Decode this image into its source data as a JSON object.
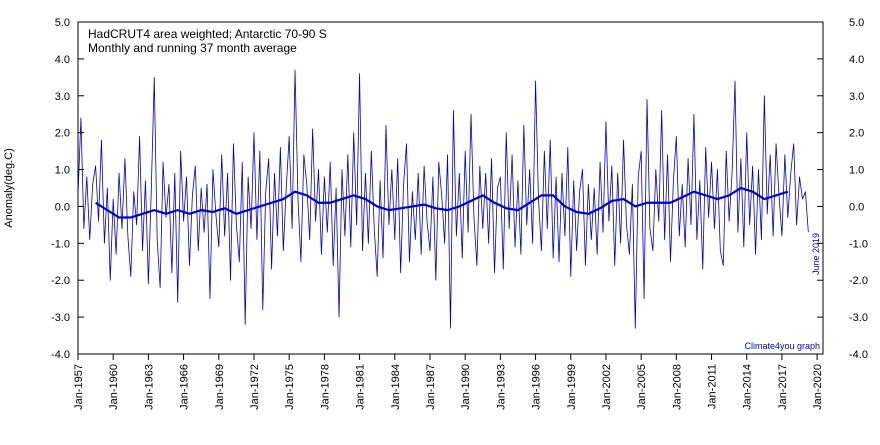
{
  "chart_data": {
    "type": "line",
    "title": "HadCRUT4 area weighted; Antarctic 70-90 S",
    "subtitle": "Monthly and running 37 month average",
    "y_label": "Anomaly(deg.C)",
    "annotations": [
      "June 2019",
      "Climate4you graph"
    ],
    "xlim": [
      1957,
      2020.5
    ],
    "ylim": [
      -4,
      5
    ],
    "xticks": [
      {
        "value": 1957,
        "label": "Jan-1957"
      },
      {
        "value": 1960,
        "label": "Jan-1960"
      },
      {
        "value": 1963,
        "label": "Jan-1963"
      },
      {
        "value": 1966,
        "label": "Jan-1966"
      },
      {
        "value": 1969,
        "label": "Jan-1969"
      },
      {
        "value": 1972,
        "label": "Jan-1972"
      },
      {
        "value": 1975,
        "label": "Jan-1975"
      },
      {
        "value": 1978,
        "label": "Jan-1978"
      },
      {
        "value": 1981,
        "label": "Jan-1981"
      },
      {
        "value": 1984,
        "label": "Jan-1984"
      },
      {
        "value": 1987,
        "label": "Jan-1987"
      },
      {
        "value": 1990,
        "label": "Jan-1990"
      },
      {
        "value": 1993,
        "label": "Jan-1993"
      },
      {
        "value": 1996,
        "label": "Jan-1996"
      },
      {
        "value": 1999,
        "label": "Jan-1999"
      },
      {
        "value": 2002,
        "label": "Jan-2002"
      },
      {
        "value": 2005,
        "label": "Jan-2005"
      },
      {
        "value": 2008,
        "label": "Jan-2008"
      },
      {
        "value": 2011,
        "label": "Jan-2011"
      },
      {
        "value": 2014,
        "label": "Jan-2014"
      },
      {
        "value": 2017,
        "label": "Jan-2017"
      },
      {
        "value": 2020,
        "label": "Jan-2020"
      }
    ],
    "yticks": [
      {
        "value": 5,
        "label": "5.0"
      },
      {
        "value": 4,
        "label": "4.0"
      },
      {
        "value": 3,
        "label": "3.0"
      },
      {
        "value": 2,
        "label": "2.0"
      },
      {
        "value": 1,
        "label": "1.0"
      },
      {
        "value": 0,
        "label": "0.0"
      },
      {
        "value": -1,
        "label": "-1.0"
      },
      {
        "value": -2,
        "label": "-2.0"
      },
      {
        "value": -3,
        "label": "-3.0"
      },
      {
        "value": -4,
        "label": "-4.0"
      }
    ],
    "series": [
      {
        "color": "#0000cc",
        "width": 0.8,
        "x": [
          1957,
          1957.25,
          1957.5,
          1957.75,
          1958,
          1958.25,
          1958.5,
          1958.75,
          1959,
          1959.25,
          1959.5,
          1959.75,
          1960,
          1960.25,
          1960.5,
          1960.75,
          1961,
          1961.25,
          1961.5,
          1961.75,
          1962,
          1962.25,
          1962.5,
          1962.75,
          1963,
          1963.25,
          1963.5,
          1963.75,
          1964,
          1964.25,
          1964.5,
          1964.75,
          1965,
          1965.25,
          1965.5,
          1965.75,
          1966,
          1966.25,
          1966.5,
          1966.75,
          1967,
          1967.25,
          1967.5,
          1967.75,
          1968,
          1968.25,
          1968.5,
          1968.75,
          1969,
          1969.25,
          1969.5,
          1969.75,
          1970,
          1970.25,
          1970.5,
          1970.75,
          1971,
          1971.25,
          1971.5,
          1971.75,
          1972,
          1972.25,
          1972.5,
          1972.75,
          1973,
          1973.25,
          1973.5,
          1973.75,
          1974,
          1974.25,
          1974.5,
          1974.75,
          1975,
          1975.25,
          1975.5,
          1975.75,
          1976,
          1976.25,
          1976.5,
          1976.75,
          1977,
          1977.25,
          1977.5,
          1977.75,
          1978,
          1978.25,
          1978.5,
          1978.75,
          1979,
          1979.25,
          1979.5,
          1979.75,
          1980,
          1980.25,
          1980.5,
          1980.75,
          1981,
          1981.25,
          1981.5,
          1981.75,
          1982,
          1982.25,
          1982.5,
          1982.75,
          1983,
          1983.25,
          1983.5,
          1983.75,
          1984,
          1984.25,
          1984.5,
          1984.75,
          1985,
          1985.25,
          1985.5,
          1985.75,
          1986,
          1986.25,
          1986.5,
          1986.75,
          1987,
          1987.25,
          1987.5,
          1987.75,
          1988,
          1988.25,
          1988.5,
          1988.75,
          1989,
          1989.25,
          1989.5,
          1989.75,
          1990,
          1990.25,
          1990.5,
          1990.75,
          1991,
          1991.25,
          1991.5,
          1991.75,
          1992,
          1992.25,
          1992.5,
          1992.75,
          1993,
          1993.25,
          1993.5,
          1993.75,
          1994,
          1994.25,
          1994.5,
          1994.75,
          1995,
          1995.25,
          1995.5,
          1995.75,
          1996,
          1996.25,
          1996.5,
          1996.75,
          1997,
          1997.25,
          1997.5,
          1997.75,
          1998,
          1998.25,
          1998.5,
          1998.75,
          1999,
          1999.25,
          1999.5,
          1999.75,
          2000,
          2000.25,
          2000.5,
          2000.75,
          2001,
          2001.25,
          2001.5,
          2001.75,
          2002,
          2002.25,
          2002.5,
          2002.75,
          2003,
          2003.25,
          2003.5,
          2003.75,
          2004,
          2004.25,
          2004.5,
          2004.75,
          2005,
          2005.25,
          2005.5,
          2005.75,
          2006,
          2006.25,
          2006.5,
          2006.75,
          2007,
          2007.25,
          2007.5,
          2007.75,
          2008,
          2008.25,
          2008.5,
          2008.75,
          2009,
          2009.25,
          2009.5,
          2009.75,
          2010,
          2010.25,
          2010.5,
          2010.75,
          2011,
          2011.25,
          2011.5,
          2011.75,
          2012,
          2012.25,
          2012.5,
          2012.75,
          2013,
          2013.25,
          2013.5,
          2013.75,
          2014,
          2014.25,
          2014.5,
          2014.75,
          2015,
          2015.25,
          2015.5,
          2015.75,
          2016,
          2016.25,
          2016.5,
          2016.75,
          2017,
          2017.25,
          2017.5,
          2017.75,
          2018,
          2018.25,
          2018.5,
          2018.75,
          2019,
          2019.25
        ],
        "values": [
          0.3,
          2.4,
          -0.6,
          0.8,
          -0.9,
          0.6,
          1.1,
          -0.4,
          1.8,
          -1.0,
          0.5,
          -2.0,
          0.2,
          -1.3,
          0.9,
          -0.6,
          1.3,
          -0.8,
          -1.9,
          0.4,
          -0.5,
          1.9,
          -1.2,
          0.7,
          -2.1,
          0.5,
          3.5,
          -0.9,
          -2.2,
          1.2,
          -0.3,
          0.6,
          -1.8,
          0.9,
          -2.6,
          1.5,
          -0.4,
          0.8,
          -1.6,
          0.3,
          1.1,
          -1.2,
          0.5,
          -0.7,
          0.6,
          -2.5,
          1.0,
          -0.2,
          -1.1,
          1.4,
          -0.8,
          0.9,
          -2.0,
          1.7,
          -0.5,
          -1.5,
          1.2,
          -3.2,
          0.8,
          -0.6,
          2.0,
          -0.9,
          1.5,
          -2.8,
          0.4,
          1.3,
          -1.7,
          0.9,
          -0.8,
          1.6,
          -1.2,
          0.5,
          1.9,
          -0.6,
          3.7,
          0.2,
          -1.5,
          1.4,
          0.6,
          -0.9,
          2.1,
          -0.4,
          1.0,
          -1.3,
          0.8,
          -0.7,
          1.2,
          -1.6,
          0.5,
          -3.0,
          1.0,
          -0.8,
          1.4,
          -1.1,
          2.0,
          -0.5,
          3.6,
          -1.2,
          0.9,
          -1.0,
          1.5,
          -0.6,
          -1.9,
          0.7,
          -1.4,
          2.2,
          -0.5,
          1.0,
          -0.9,
          1.3,
          -1.8,
          0.6,
          1.7,
          -1.5,
          0.4,
          -0.9,
          0.9,
          -1.3,
          1.1,
          -0.4,
          -1.2,
          0.8,
          -2.0,
          1.2,
          0.3,
          -1.0,
          1.4,
          -3.3,
          2.6,
          -0.8,
          0.9,
          -1.4,
          1.5,
          -0.7,
          2.5,
          -0.3,
          -1.6,
          1.1,
          -0.6,
          0.9,
          -1.0,
          1.3,
          -1.8,
          0.5,
          0.8,
          -1.7,
          2.0,
          -0.6,
          1.4,
          -1.1,
          0.7,
          -1.3,
          2.2,
          -0.5,
          1.0,
          -1.0,
          3.4,
          0.2,
          -1.2,
          1.5,
          -0.6,
          1.8,
          -1.4,
          0.8,
          -1.5,
          0.9,
          -0.8,
          1.6,
          -1.9,
          0.7,
          -1.2,
          0.4,
          1.0,
          -1.6,
          0.6,
          -0.9,
          0.5,
          -1.3,
          1.2,
          -0.7,
          2.3,
          -0.4,
          1.1,
          -1.6,
          0.9,
          -1.0,
          1.8,
          -0.5,
          -1.3,
          0.6,
          -3.3,
          0.8,
          1.5,
          -2.5,
          2.9,
          -0.6,
          -1.2,
          1.0,
          -0.4,
          2.6,
          -0.9,
          1.4,
          -1.5,
          0.7,
          1.9,
          -0.8,
          0.6,
          -1.1,
          1.3,
          -0.5,
          2.5,
          -0.9,
          0.7,
          -1.7,
          1.6,
          -0.3,
          1.2,
          -0.6,
          1.0,
          -1.2,
          -1.6,
          1.5,
          -0.4,
          0.9,
          3.4,
          -0.7,
          1.3,
          -1.1,
          2.0,
          -0.5,
          1.1,
          -1.3,
          1.0,
          -0.9,
          3.0,
          -0.2,
          1.4,
          -0.8,
          1.7,
          0.3,
          -0.8,
          1.4,
          -0.3,
          0.9,
          1.7,
          -0.5,
          0.8,
          0.2,
          0.4,
          -0.7
        ]
      },
      {
        "color": "#0000cc",
        "width": 2.2,
        "x": [
          1958.5,
          1959.5,
          1960.5,
          1961.5,
          1962.5,
          1963.5,
          1964.5,
          1965.5,
          1966.5,
          1967.5,
          1968.5,
          1969.5,
          1970.5,
          1971.5,
          1972.5,
          1973.5,
          1974.5,
          1975.5,
          1976.5,
          1977.5,
          1978.5,
          1979.5,
          1980.5,
          1981.5,
          1982.5,
          1983.5,
          1984.5,
          1985.5,
          1986.5,
          1987.5,
          1988.5,
          1989.5,
          1990.5,
          1991.5,
          1992.5,
          1993.5,
          1994.5,
          1995.5,
          1996.5,
          1997.5,
          1998.5,
          1999.5,
          2000.5,
          2001.5,
          2002.5,
          2003.5,
          2004.5,
          2005.5,
          2006.5,
          2007.5,
          2008.5,
          2009.5,
          2010.5,
          2011.5,
          2012.5,
          2013.5,
          2014.5,
          2015.5,
          2016.5,
          2017.5
        ],
        "values": [
          0.1,
          -0.1,
          -0.3,
          -0.3,
          -0.2,
          -0.1,
          -0.2,
          -0.1,
          -0.2,
          -0.1,
          -0.15,
          -0.05,
          -0.2,
          -0.1,
          0.0,
          0.1,
          0.2,
          0.4,
          0.3,
          0.1,
          0.1,
          0.2,
          0.3,
          0.2,
          0.0,
          -0.1,
          -0.05,
          0.0,
          0.05,
          -0.05,
          -0.1,
          0.0,
          0.15,
          0.3,
          0.1,
          -0.05,
          -0.1,
          0.1,
          0.3,
          0.3,
          0.0,
          -0.15,
          -0.2,
          -0.05,
          0.15,
          0.2,
          0.0,
          0.1,
          0.1,
          0.1,
          0.25,
          0.4,
          0.3,
          0.2,
          0.3,
          0.5,
          0.4,
          0.2,
          0.3,
          0.4
        ]
      }
    ]
  }
}
